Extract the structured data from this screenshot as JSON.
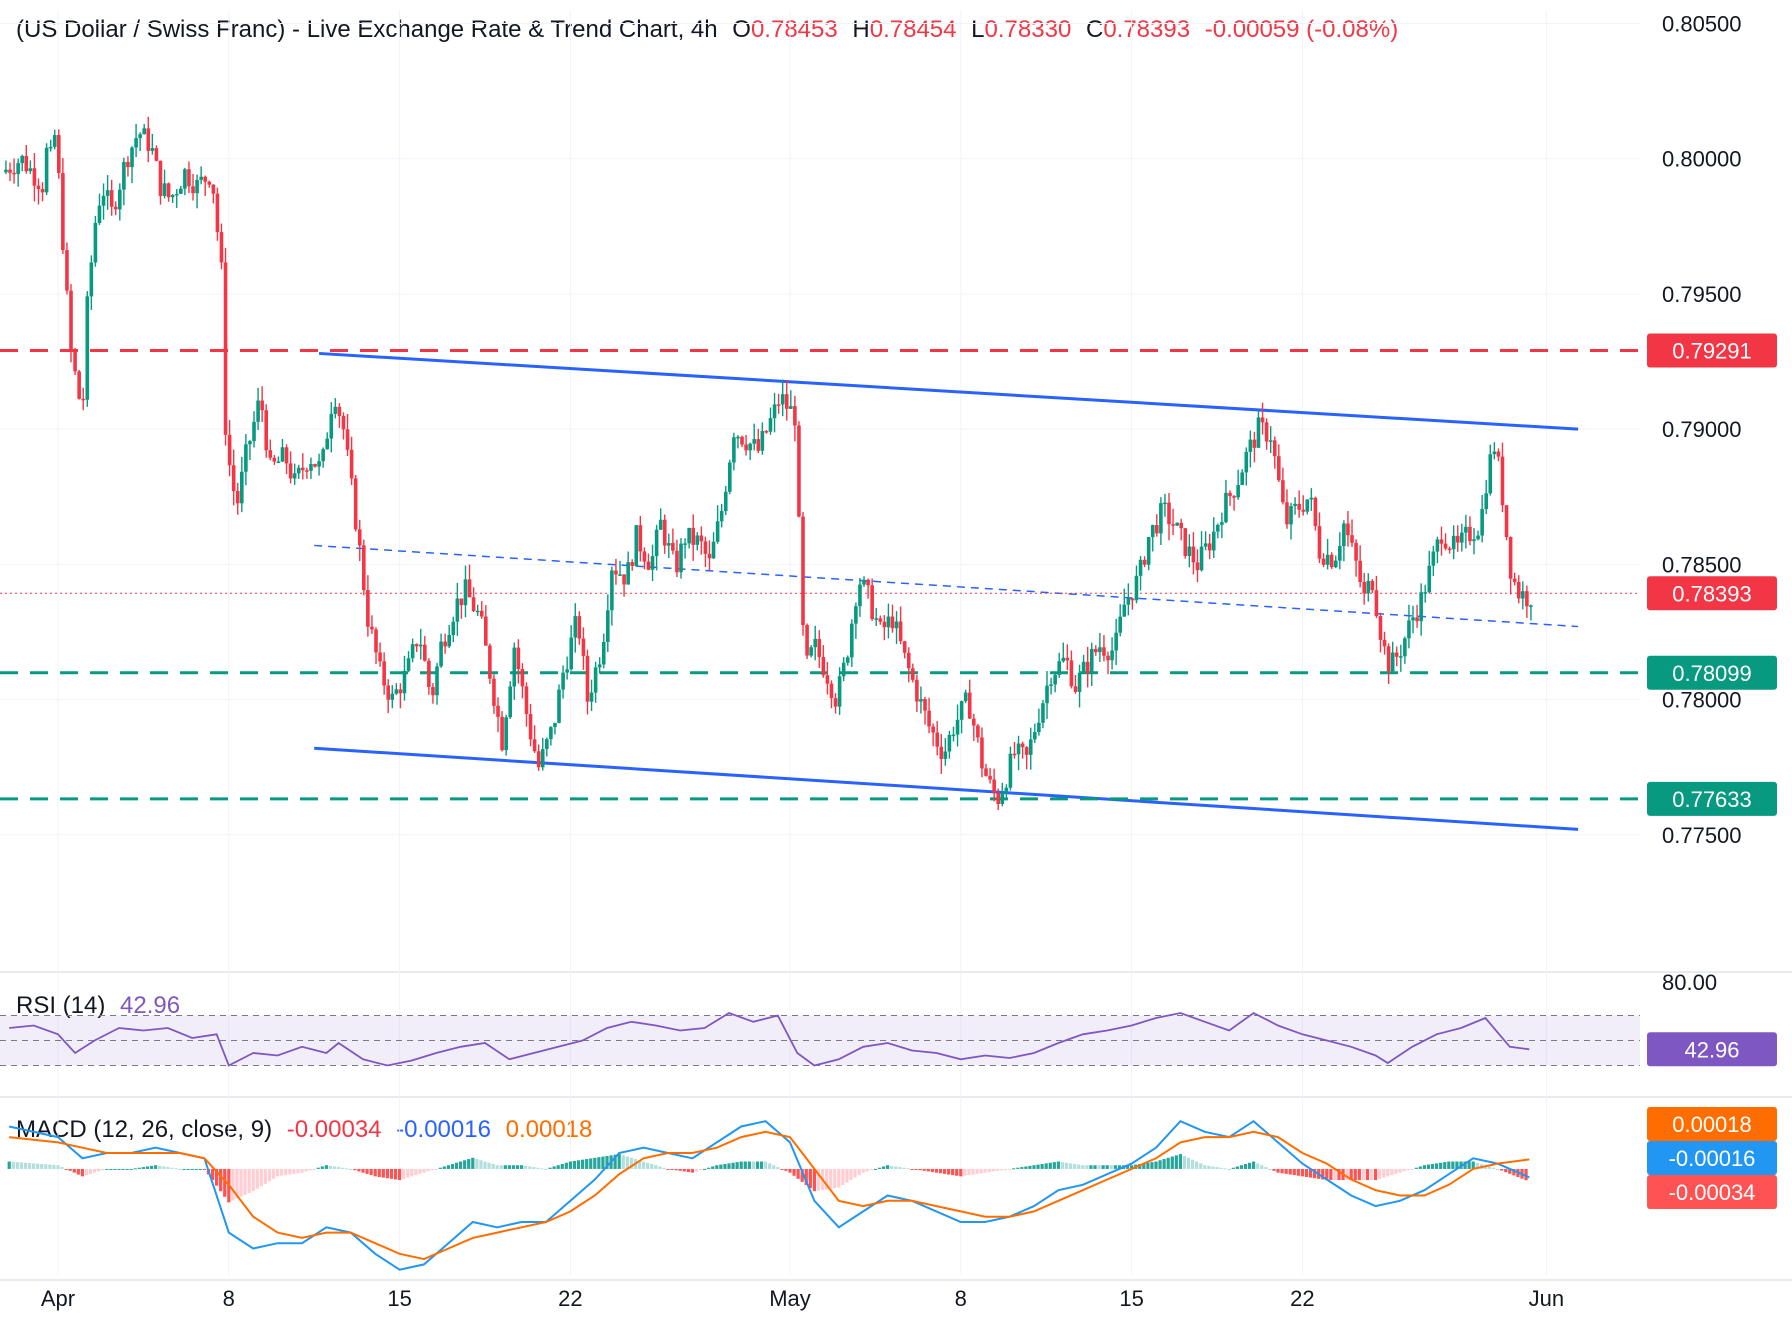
{
  "header": {
    "title": "(US Dollar / Swiss Franc) - Live Exchange Rate & Trend Chart, 4h",
    "open_label": "O",
    "open": "0.78453",
    "high_label": "H",
    "high": "0.78454",
    "low_label": "L",
    "low": "0.78330",
    "close_label": "C",
    "close": "0.78393",
    "change": "-0.00059 (-0.08%)"
  },
  "rsi_header": {
    "label": "RSI (14)",
    "value": "42.96"
  },
  "macd_header": {
    "label": "MACD (12, 26, close, 9)",
    "hist": "-0.00034",
    "macd": "-0.00016",
    "signal": "0.00018"
  },
  "colors": {
    "up": "#089981",
    "down": "#f23645",
    "channel": "#2962ff",
    "resistance": "#f23645",
    "support": "#089981",
    "rsi": "#7e57c2",
    "macd": "#2196f3",
    "signal": "#ff6d00"
  },
  "chart_data": {
    "type": "candlestick",
    "symbol": "USD/CHF",
    "timeframe": "4h",
    "ylim": [
      0.77,
      0.8055
    ],
    "y_ticks": [
      "0.80500",
      "0.80000",
      "0.79500",
      "0.79000",
      "0.78500",
      "0.78000",
      "0.77500"
    ],
    "x_ticks": [
      {
        "label": "Apr",
        "day": 0
      },
      {
        "label": "8",
        "day": 7
      },
      {
        "label": "15",
        "day": 14
      },
      {
        "label": "22",
        "day": 21
      },
      {
        "label": "May",
        "day": 30
      },
      {
        "label": "8",
        "day": 37
      },
      {
        "label": "15",
        "day": 44
      },
      {
        "label": "22",
        "day": 51
      },
      {
        "label": "Jun",
        "day": 61
      }
    ],
    "price_path": [
      [
        -2.3,
        0.7995
      ],
      [
        -1.5,
        0.8
      ],
      [
        -0.6,
        0.799
      ],
      [
        -0.5,
        0.8003
      ],
      [
        -0.3,
        0.8
      ],
      [
        -0.1,
        0.801
      ],
      [
        0.5,
        0.793
      ],
      [
        0.8,
        0.7915
      ],
      [
        1.0,
        0.7905
      ],
      [
        1.2,
        0.7945
      ],
      [
        1.5,
        0.7975
      ],
      [
        1.8,
        0.799
      ],
      [
        2.2,
        0.798
      ],
      [
        2.8,
        0.8
      ],
      [
        3.3,
        0.801
      ],
      [
        3.8,
        0.8005
      ],
      [
        4.2,
        0.799
      ],
      [
        4.6,
        0.7985
      ],
      [
        5.2,
        0.7995
      ],
      [
        5.7,
        0.799
      ],
      [
        6.3,
        0.7995
      ],
      [
        6.7,
        0.7958
      ],
      [
        6.9,
        0.789
      ],
      [
        7.1,
        0.7885
      ],
      [
        7.3,
        0.787
      ],
      [
        7.7,
        0.789
      ],
      [
        8.3,
        0.7912
      ],
      [
        8.7,
        0.7885
      ],
      [
        9.3,
        0.789
      ],
      [
        9.7,
        0.788
      ],
      [
        10.3,
        0.789
      ],
      [
        10.8,
        0.7885
      ],
      [
        11.3,
        0.7915
      ],
      [
        11.7,
        0.79
      ],
      [
        12.3,
        0.786
      ],
      [
        12.7,
        0.783
      ],
      [
        13.2,
        0.781
      ],
      [
        13.7,
        0.78
      ],
      [
        14.3,
        0.781
      ],
      [
        14.8,
        0.7825
      ],
      [
        15.3,
        0.78
      ],
      [
        15.7,
        0.782
      ],
      [
        16.3,
        0.7835
      ],
      [
        16.7,
        0.784
      ],
      [
        17.3,
        0.783
      ],
      [
        17.7,
        0.781
      ],
      [
        18.2,
        0.7785
      ],
      [
        18.7,
        0.782
      ],
      [
        19.3,
        0.779
      ],
      [
        19.7,
        0.7775
      ],
      [
        20.3,
        0.779
      ],
      [
        20.7,
        0.781
      ],
      [
        21.3,
        0.783
      ],
      [
        21.7,
        0.78
      ],
      [
        22.3,
        0.782
      ],
      [
        22.7,
        0.785
      ],
      [
        23.3,
        0.7845
      ],
      [
        23.7,
        0.786
      ],
      [
        24.3,
        0.785
      ],
      [
        24.7,
        0.7865
      ],
      [
        25.3,
        0.7848
      ],
      [
        25.7,
        0.786
      ],
      [
        26.3,
        0.7858
      ],
      [
        26.7,
        0.785
      ],
      [
        27.2,
        0.787
      ],
      [
        27.7,
        0.79
      ],
      [
        28.3,
        0.7895
      ],
      [
        28.7,
        0.7892
      ],
      [
        29.3,
        0.7905
      ],
      [
        29.6,
        0.7912
      ],
      [
        29.9,
        0.7908
      ],
      [
        30.2,
        0.7905
      ],
      [
        30.4,
        0.7855
      ],
      [
        30.6,
        0.781
      ],
      [
        31.0,
        0.782
      ],
      [
        31.5,
        0.781
      ],
      [
        31.9,
        0.78
      ],
      [
        32.3,
        0.7815
      ],
      [
        32.8,
        0.7845
      ],
      [
        33.2,
        0.7838
      ],
      [
        33.7,
        0.7825
      ],
      [
        34.2,
        0.783
      ],
      [
        34.7,
        0.7815
      ],
      [
        35.3,
        0.78
      ],
      [
        35.7,
        0.779
      ],
      [
        36.3,
        0.778
      ],
      [
        36.7,
        0.779
      ],
      [
        37.3,
        0.78
      ],
      [
        37.6,
        0.7788
      ],
      [
        37.9,
        0.7775
      ],
      [
        38.2,
        0.7768
      ],
      [
        38.5,
        0.7763
      ],
      [
        38.8,
        0.777
      ],
      [
        39.2,
        0.778
      ],
      [
        39.7,
        0.7778
      ],
      [
        40.2,
        0.7795
      ],
      [
        40.7,
        0.781
      ],
      [
        41.3,
        0.7815
      ],
      [
        41.7,
        0.7805
      ],
      [
        42.3,
        0.7815
      ],
      [
        42.7,
        0.782
      ],
      [
        43.3,
        0.7818
      ],
      [
        43.7,
        0.7835
      ],
      [
        44.3,
        0.7845
      ],
      [
        44.7,
        0.786
      ],
      [
        45.3,
        0.787
      ],
      [
        45.7,
        0.7865
      ],
      [
        46.3,
        0.7855
      ],
      [
        46.7,
        0.785
      ],
      [
        47.3,
        0.786
      ],
      [
        47.7,
        0.787
      ],
      [
        48.3,
        0.788
      ],
      [
        48.7,
        0.789
      ],
      [
        49.2,
        0.79
      ],
      [
        49.7,
        0.7898
      ],
      [
        50.3,
        0.7865
      ],
      [
        50.7,
        0.787
      ],
      [
        51.3,
        0.7875
      ],
      [
        51.7,
        0.7855
      ],
      [
        52.3,
        0.7852
      ],
      [
        52.7,
        0.7865
      ],
      [
        53.2,
        0.785
      ],
      [
        53.6,
        0.7835
      ],
      [
        53.8,
        0.7848
      ],
      [
        54.3,
        0.782
      ],
      [
        54.6,
        0.7812
      ],
      [
        55.0,
        0.7818
      ],
      [
        55.5,
        0.783
      ],
      [
        55.8,
        0.7835
      ],
      [
        56.3,
        0.785
      ],
      [
        56.7,
        0.7862
      ],
      [
        57.3,
        0.7855
      ],
      [
        57.7,
        0.786
      ],
      [
        58.3,
        0.7865
      ],
      [
        58.6,
        0.7885
      ],
      [
        58.9,
        0.7895
      ],
      [
        59.2,
        0.7875
      ],
      [
        59.5,
        0.785
      ],
      [
        59.8,
        0.784
      ],
      [
        60.2,
        0.7838
      ],
      [
        60.5,
        0.7839
      ]
    ],
    "lines": {
      "resistance": {
        "price": 0.79291,
        "label": "0.79291"
      },
      "support_1": {
        "price": 0.78099,
        "label": "0.78099"
      },
      "support_2": {
        "price": 0.77633,
        "label": "0.77633"
      },
      "current_price": {
        "price": 0.78393,
        "label": "0.78393"
      },
      "channel_upper": {
        "from": [
          10.7,
          0.7928
        ],
        "to": [
          62.3,
          0.79
        ]
      },
      "channel_lower": {
        "from": [
          10.5,
          0.7782
        ],
        "to": [
          62.3,
          0.7752
        ]
      },
      "channel_mid": {
        "from": [
          10.5,
          0.7857
        ],
        "to": [
          62.3,
          0.7827
        ]
      }
    },
    "rsi": {
      "label": "RSI (14)",
      "length": 14,
      "value": 42.96,
      "value_label": "42.96",
      "tick": "80.00",
      "levels": [
        70,
        50,
        30
      ],
      "path": [
        [
          -2,
          60
        ],
        [
          -1,
          62
        ],
        [
          0,
          55
        ],
        [
          0.7,
          40
        ],
        [
          1.5,
          50
        ],
        [
          2.5,
          60
        ],
        [
          3.5,
          58
        ],
        [
          4.5,
          60
        ],
        [
          5.5,
          52
        ],
        [
          6.5,
          55
        ],
        [
          7.0,
          30
        ],
        [
          8,
          40
        ],
        [
          9,
          38
        ],
        [
          10,
          45
        ],
        [
          11,
          40
        ],
        [
          11.5,
          48
        ],
        [
          12.5,
          35
        ],
        [
          13.5,
          30
        ],
        [
          14.5,
          34
        ],
        [
          15.5,
          40
        ],
        [
          16.5,
          45
        ],
        [
          17.5,
          48
        ],
        [
          18.5,
          35
        ],
        [
          19.5,
          40
        ],
        [
          20.5,
          45
        ],
        [
          21.5,
          50
        ],
        [
          22.5,
          60
        ],
        [
          23.5,
          65
        ],
        [
          24.5,
          62
        ],
        [
          25.5,
          58
        ],
        [
          26.5,
          60
        ],
        [
          27.5,
          72
        ],
        [
          28.5,
          65
        ],
        [
          29.5,
          70
        ],
        [
          30.3,
          40
        ],
        [
          31,
          30
        ],
        [
          32,
          35
        ],
        [
          33,
          45
        ],
        [
          34,
          48
        ],
        [
          35,
          42
        ],
        [
          36,
          40
        ],
        [
          37,
          35
        ],
        [
          38,
          38
        ],
        [
          39,
          36
        ],
        [
          40,
          40
        ],
        [
          41,
          48
        ],
        [
          42,
          55
        ],
        [
          43,
          58
        ],
        [
          44,
          62
        ],
        [
          45,
          68
        ],
        [
          46,
          72
        ],
        [
          47,
          65
        ],
        [
          48,
          58
        ],
        [
          49,
          72
        ],
        [
          50,
          62
        ],
        [
          51,
          55
        ],
        [
          52,
          50
        ],
        [
          53,
          45
        ],
        [
          54,
          38
        ],
        [
          54.5,
          32
        ],
        [
          55.5,
          45
        ],
        [
          56.5,
          55
        ],
        [
          57.5,
          60
        ],
        [
          58.5,
          68
        ],
        [
          59.5,
          45
        ],
        [
          60.3,
          42.96
        ]
      ]
    },
    "macd": {
      "label": "MACD (12, 26, close, 9)",
      "histogram_value": -0.00034,
      "macd_value": -0.00016,
      "signal_value": 0.00018,
      "ylim": [
        -0.002,
        0.0013
      ],
      "macd_path": [
        [
          -2,
          0.0008
        ],
        [
          0,
          0.0006
        ],
        [
          1,
          0.0002
        ],
        [
          2,
          0.0003
        ],
        [
          3,
          0.0003
        ],
        [
          4,
          0.0004
        ],
        [
          5,
          0.0003
        ],
        [
          6,
          0.0002
        ],
        [
          7,
          -0.0012
        ],
        [
          8,
          -0.0015
        ],
        [
          9,
          -0.0014
        ],
        [
          10,
          -0.0014
        ],
        [
          11,
          -0.0011
        ],
        [
          12,
          -0.0012
        ],
        [
          13,
          -0.0016
        ],
        [
          14,
          -0.0019
        ],
        [
          15,
          -0.0018
        ],
        [
          16,
          -0.0014
        ],
        [
          17,
          -0.001
        ],
        [
          18,
          -0.0011
        ],
        [
          19,
          -0.001
        ],
        [
          20,
          -0.001
        ],
        [
          21,
          -0.0006
        ],
        [
          22,
          -0.0002
        ],
        [
          23,
          0.0003
        ],
        [
          24,
          0.0004
        ],
        [
          25,
          0.0003
        ],
        [
          26,
          0.0002
        ],
        [
          27,
          0.0005
        ],
        [
          28,
          0.0008
        ],
        [
          29,
          0.0009
        ],
        [
          30,
          0.0005
        ],
        [
          31,
          -0.0006
        ],
        [
          32,
          -0.0011
        ],
        [
          33,
          -0.0008
        ],
        [
          34,
          -0.0005
        ],
        [
          35,
          -0.0006
        ],
        [
          36,
          -0.0008
        ],
        [
          37,
          -0.001
        ],
        [
          38,
          -0.001
        ],
        [
          39,
          -0.0009
        ],
        [
          40,
          -0.0007
        ],
        [
          41,
          -0.0004
        ],
        [
          42,
          -0.0003
        ],
        [
          43,
          -0.0001
        ],
        [
          44,
          0.0001
        ],
        [
          45,
          0.0004
        ],
        [
          46,
          0.0009
        ],
        [
          47,
          0.0007
        ],
        [
          48,
          0.0006
        ],
        [
          49,
          0.0009
        ],
        [
          50,
          0.0005
        ],
        [
          51,
          0.0001
        ],
        [
          52,
          -0.0002
        ],
        [
          53,
          -0.0005
        ],
        [
          54,
          -0.0007
        ],
        [
          55,
          -0.0006
        ],
        [
          56,
          -0.0004
        ],
        [
          57,
          -0.0001
        ],
        [
          58,
          0.0002
        ],
        [
          59,
          0.0001
        ],
        [
          60.3,
          -0.00016
        ]
      ],
      "signal_path": [
        [
          -2,
          0.0006
        ],
        [
          0,
          0.0005
        ],
        [
          1,
          0.0004
        ],
        [
          2,
          0.0003
        ],
        [
          3,
          0.0003
        ],
        [
          4,
          0.0003
        ],
        [
          5,
          0.0003
        ],
        [
          6,
          0.0002
        ],
        [
          7,
          -0.0003
        ],
        [
          8,
          -0.0009
        ],
        [
          9,
          -0.0012
        ],
        [
          10,
          -0.0013
        ],
        [
          11,
          -0.0012
        ],
        [
          12,
          -0.0012
        ],
        [
          13,
          -0.0014
        ],
        [
          14,
          -0.0016
        ],
        [
          15,
          -0.0017
        ],
        [
          16,
          -0.0015
        ],
        [
          17,
          -0.0013
        ],
        [
          18,
          -0.0012
        ],
        [
          19,
          -0.0011
        ],
        [
          20,
          -0.001
        ],
        [
          21,
          -0.0008
        ],
        [
          22,
          -0.0005
        ],
        [
          23,
          -0.0001
        ],
        [
          24,
          0.0002
        ],
        [
          25,
          0.0003
        ],
        [
          26,
          0.0003
        ],
        [
          27,
          0.0004
        ],
        [
          28,
          0.0006
        ],
        [
          29,
          0.0007
        ],
        [
          30,
          0.0006
        ],
        [
          31,
          0.0
        ],
        [
          32,
          -0.0006
        ],
        [
          33,
          -0.0007
        ],
        [
          34,
          -0.0006
        ],
        [
          35,
          -0.0006
        ],
        [
          36,
          -0.0007
        ],
        [
          37,
          -0.0008
        ],
        [
          38,
          -0.0009
        ],
        [
          39,
          -0.0009
        ],
        [
          40,
          -0.0008
        ],
        [
          41,
          -0.0006
        ],
        [
          42,
          -0.0004
        ],
        [
          43,
          -0.0002
        ],
        [
          44,
          0.0
        ],
        [
          45,
          0.0002
        ],
        [
          46,
          0.0005
        ],
        [
          47,
          0.0006
        ],
        [
          48,
          0.0006
        ],
        [
          49,
          0.0007
        ],
        [
          50,
          0.0006
        ],
        [
          51,
          0.0003
        ],
        [
          52,
          0.0001
        ],
        [
          53,
          -0.0002
        ],
        [
          54,
          -0.0004
        ],
        [
          55,
          -0.0005
        ],
        [
          56,
          -0.0005
        ],
        [
          57,
          -0.0003
        ],
        [
          58,
          0.0
        ],
        [
          59,
          0.0001
        ],
        [
          60.3,
          0.00018
        ]
      ]
    }
  }
}
